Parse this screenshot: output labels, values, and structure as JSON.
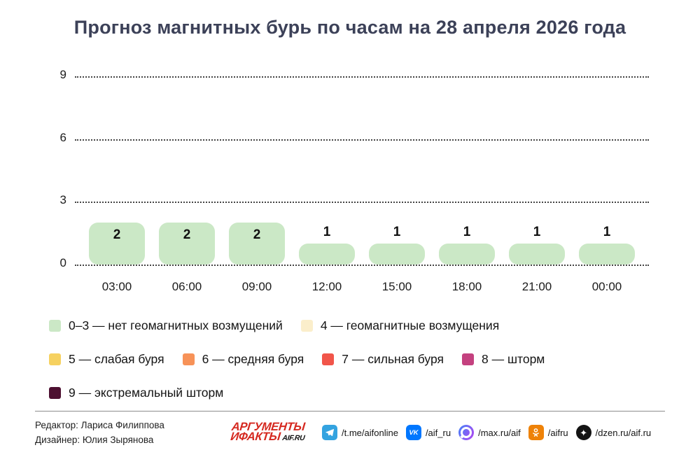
{
  "title": "Прогноз магнитных бурь по часам на 28 апреля 2026 года",
  "chart_data": {
    "type": "bar",
    "title": "Прогноз магнитных бурь по часам на 28 апреля 2026 года",
    "categories": [
      "03:00",
      "06:00",
      "09:00",
      "12:00",
      "15:00",
      "18:00",
      "21:00",
      "00:00"
    ],
    "values": [
      2,
      2,
      2,
      1,
      1,
      1,
      1,
      1
    ],
    "xlabel": "",
    "ylabel": "",
    "ylim": [
      0,
      9
    ],
    "yticks": [
      0,
      3,
      6,
      9
    ],
    "grid": "horizontal-dotted",
    "bar_color": "#cbe8c6",
    "value_label_color": "#101010",
    "legend_position": "bottom"
  },
  "legend": {
    "rows": [
      {
        "items": [
          {
            "label": "0–3 — нет геомагнитных возмущений",
            "color": "#cbe8c6"
          },
          {
            "label": "4 — геомагнитные возмущения",
            "color": "#fbeecb"
          }
        ]
      },
      {
        "items": [
          {
            "label": "5 — слабая буря",
            "color": "#f6d160"
          },
          {
            "label": "6 — средняя буря",
            "color": "#f79258"
          },
          {
            "label": "7 — сильная буря",
            "color": "#f1554a"
          },
          {
            "label": "8 — шторм",
            "color": "#c4417f"
          }
        ]
      },
      {
        "items": [
          {
            "label": "9 — экстремальный шторм",
            "color": "#4d1031"
          }
        ]
      }
    ]
  },
  "footer": {
    "editor": "Редактор: Лариса Филиппова",
    "designer": "Дизайнер: Юлия Зырянова",
    "logo": {
      "line1": "АРГУМЕНТЫ",
      "line2": "ИФАКТЫ",
      "suffix": "AIF.RU"
    },
    "socials": [
      {
        "name": "telegram",
        "label": "/t.me/aifonline"
      },
      {
        "name": "vk",
        "label": "/aif_ru",
        "glyph": "VK"
      },
      {
        "name": "max",
        "label": "/max.ru/aif"
      },
      {
        "name": "ok",
        "label": "/aifru"
      },
      {
        "name": "dzen",
        "label": "/dzen.ru/aif.ru",
        "glyph": "✦"
      }
    ]
  }
}
